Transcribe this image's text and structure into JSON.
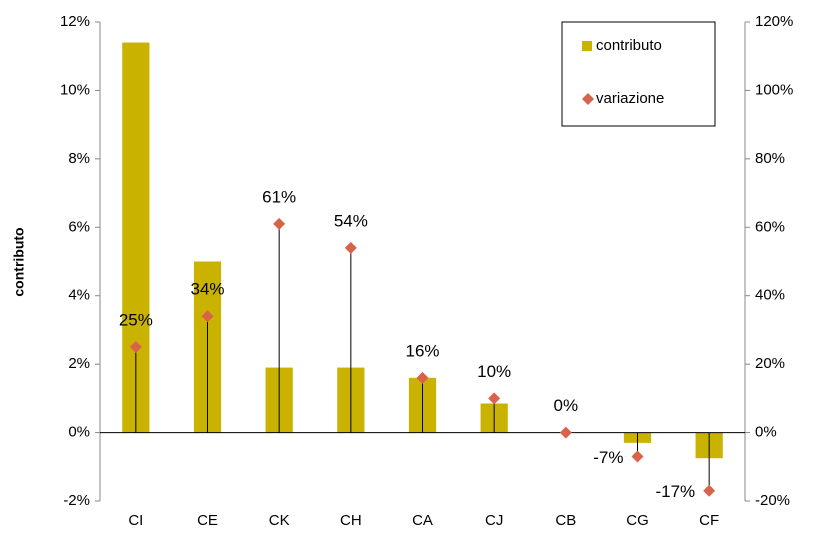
{
  "chart_data": {
    "type": "bar",
    "categories": [
      "CI",
      "CE",
      "CK",
      "CH",
      "CA",
      "CJ",
      "CB",
      "CG",
      "CF"
    ],
    "series": [
      {
        "name": "contributo",
        "color": "#c9b300",
        "values": [
          11.4,
          5.0,
          1.9,
          1.9,
          1.6,
          0.85,
          0,
          -0.3,
          -0.75
        ]
      },
      {
        "name": "variazione",
        "color": "#d9634a",
        "axis": "y2",
        "marker": "diamond",
        "values": [
          25,
          34,
          61,
          54,
          16,
          10,
          0,
          -7,
          -17
        ],
        "value_labels": [
          "25%",
          "34%",
          "61%",
          "54%",
          "16%",
          "10%",
          "0%",
          "-7%",
          "-17%"
        ]
      }
    ],
    "ylabel": "contributo",
    "ylim": [
      -2,
      12
    ],
    "yticks": [
      {
        "value": -2,
        "label": "-2%"
      },
      {
        "value": 0,
        "label": "0%"
      },
      {
        "value": 2,
        "label": "2%"
      },
      {
        "value": 4,
        "label": "4%"
      },
      {
        "value": 6,
        "label": "6%"
      },
      {
        "value": 8,
        "label": "8%"
      },
      {
        "value": 10,
        "label": "10%"
      },
      {
        "value": 12,
        "label": "12%"
      }
    ],
    "y2lim": [
      -20,
      120
    ],
    "y2ticks": [
      {
        "value": -20,
        "label": "-20%"
      },
      {
        "value": 0,
        "label": "0%"
      },
      {
        "value": 20,
        "label": "20%"
      },
      {
        "value": 40,
        "label": "40%"
      },
      {
        "value": 60,
        "label": "60%"
      },
      {
        "value": 80,
        "label": "80%"
      },
      {
        "value": 100,
        "label": "100%"
      },
      {
        "value": 120,
        "label": "120%"
      }
    ],
    "legend": "upper right"
  }
}
